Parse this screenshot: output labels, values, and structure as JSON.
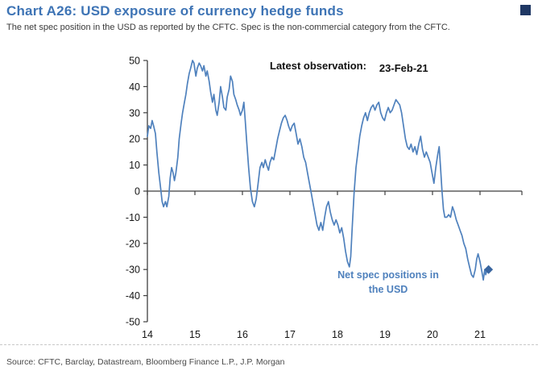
{
  "header": {
    "title": "Chart A26: USD exposure of currency hedge funds",
    "subtitle": "The net spec position in the USD as reported by the CFTC. Spec is the non-commercial category from the CFTC."
  },
  "annotations": {
    "latest_observation_label": "Latest observation:",
    "latest_observation_date": "23-Feb-21",
    "series_label_line1": "Net spec positions in",
    "series_label_line2": "the USD"
  },
  "footer": {
    "source": "Source: CFTC, Barclay, Datastream, Bloomberg Finance L.P., J.P. Morgan"
  },
  "colors": {
    "title_blue": "#3E74B5",
    "line_blue": "#4F81BD",
    "marker_blue": "#3A66A0",
    "corner_square_navy": "#1F3864",
    "axis_dark": "#3f3f3f"
  },
  "chart_data": {
    "type": "line",
    "title": "USD exposure of currency hedge funds",
    "xlabel": "",
    "ylabel": "",
    "x_ticks": [
      "14",
      "15",
      "16",
      "17",
      "18",
      "19",
      "20",
      "21"
    ],
    "y_ticks": [
      50,
      40,
      30,
      20,
      10,
      0,
      -10,
      -20,
      -30,
      -40,
      -50
    ],
    "ylim": [
      -50,
      50
    ],
    "xlim": [
      2014,
      2021.9
    ],
    "grid": false,
    "legend": "none",
    "latest_observation": {
      "date": "23-Feb-21",
      "x": 2021.18,
      "value": -30,
      "marker": "diamond"
    },
    "series": [
      {
        "name": "Net spec positions in the USD",
        "points": [
          [
            2014.0,
            21
          ],
          [
            2014.03,
            25
          ],
          [
            2014.07,
            24
          ],
          [
            2014.1,
            27
          ],
          [
            2014.13,
            25
          ],
          [
            2014.17,
            22
          ],
          [
            2014.2,
            15
          ],
          [
            2014.24,
            7
          ],
          [
            2014.28,
            1
          ],
          [
            2014.31,
            -4
          ],
          [
            2014.34,
            -6
          ],
          [
            2014.38,
            -4
          ],
          [
            2014.41,
            -6
          ],
          [
            2014.45,
            -2
          ],
          [
            2014.48,
            5
          ],
          [
            2014.51,
            9
          ],
          [
            2014.54,
            7
          ],
          [
            2014.57,
            4
          ],
          [
            2014.6,
            7
          ],
          [
            2014.64,
            13
          ],
          [
            2014.67,
            20
          ],
          [
            2014.71,
            26
          ],
          [
            2014.74,
            30
          ],
          [
            2014.78,
            34
          ],
          [
            2014.81,
            37
          ],
          [
            2014.84,
            41
          ],
          [
            2014.88,
            45
          ],
          [
            2014.91,
            47
          ],
          [
            2014.95,
            50
          ],
          [
            2014.98,
            49
          ],
          [
            2015.02,
            44
          ],
          [
            2015.05,
            47
          ],
          [
            2015.09,
            49
          ],
          [
            2015.12,
            48
          ],
          [
            2015.16,
            46
          ],
          [
            2015.19,
            48
          ],
          [
            2015.23,
            44
          ],
          [
            2015.26,
            46
          ],
          [
            2015.3,
            42
          ],
          [
            2015.33,
            38
          ],
          [
            2015.37,
            34
          ],
          [
            2015.4,
            37
          ],
          [
            2015.44,
            31
          ],
          [
            2015.47,
            29
          ],
          [
            2015.51,
            34
          ],
          [
            2015.54,
            40
          ],
          [
            2015.58,
            36
          ],
          [
            2015.61,
            32
          ],
          [
            2015.65,
            31
          ],
          [
            2015.68,
            36
          ],
          [
            2015.72,
            39
          ],
          [
            2015.75,
            44
          ],
          [
            2015.79,
            42
          ],
          [
            2015.82,
            37
          ],
          [
            2015.86,
            35
          ],
          [
            2015.89,
            33
          ],
          [
            2015.93,
            31
          ],
          [
            2015.96,
            29
          ],
          [
            2016.0,
            31
          ],
          [
            2016.03,
            34
          ],
          [
            2016.06,
            27
          ],
          [
            2016.09,
            19
          ],
          [
            2016.13,
            9
          ],
          [
            2016.17,
            1
          ],
          [
            2016.21,
            -4
          ],
          [
            2016.25,
            -6
          ],
          [
            2016.29,
            -3
          ],
          [
            2016.33,
            3
          ],
          [
            2016.37,
            9
          ],
          [
            2016.41,
            11
          ],
          [
            2016.44,
            9
          ],
          [
            2016.48,
            12
          ],
          [
            2016.51,
            10
          ],
          [
            2016.55,
            8
          ],
          [
            2016.58,
            11
          ],
          [
            2016.62,
            13
          ],
          [
            2016.66,
            12
          ],
          [
            2016.7,
            16
          ],
          [
            2016.74,
            20
          ],
          [
            2016.78,
            23
          ],
          [
            2016.82,
            26
          ],
          [
            2016.86,
            28
          ],
          [
            2016.9,
            29
          ],
          [
            2016.94,
            27
          ],
          [
            2016.97,
            25
          ],
          [
            2017.01,
            23
          ],
          [
            2017.05,
            25
          ],
          [
            2017.09,
            26
          ],
          [
            2017.13,
            22
          ],
          [
            2017.17,
            18
          ],
          [
            2017.21,
            20
          ],
          [
            2017.25,
            17
          ],
          [
            2017.29,
            13
          ],
          [
            2017.33,
            11
          ],
          [
            2017.37,
            7
          ],
          [
            2017.41,
            3
          ],
          [
            2017.45,
            -1
          ],
          [
            2017.49,
            -5
          ],
          [
            2017.53,
            -9
          ],
          [
            2017.57,
            -13
          ],
          [
            2017.61,
            -15
          ],
          [
            2017.65,
            -12
          ],
          [
            2017.69,
            -15
          ],
          [
            2017.73,
            -10
          ],
          [
            2017.77,
            -6
          ],
          [
            2017.81,
            -4
          ],
          [
            2017.85,
            -8
          ],
          [
            2017.89,
            -11
          ],
          [
            2017.93,
            -13
          ],
          [
            2017.97,
            -11
          ],
          [
            2018.01,
            -13
          ],
          [
            2018.05,
            -16
          ],
          [
            2018.09,
            -14
          ],
          [
            2018.13,
            -18
          ],
          [
            2018.17,
            -23
          ],
          [
            2018.21,
            -27
          ],
          [
            2018.25,
            -29
          ],
          [
            2018.28,
            -25
          ],
          [
            2018.31,
            -14
          ],
          [
            2018.35,
            -1
          ],
          [
            2018.39,
            9
          ],
          [
            2018.43,
            15
          ],
          [
            2018.47,
            21
          ],
          [
            2018.51,
            25
          ],
          [
            2018.55,
            28
          ],
          [
            2018.59,
            30
          ],
          [
            2018.63,
            27
          ],
          [
            2018.67,
            30
          ],
          [
            2018.71,
            32
          ],
          [
            2018.75,
            33
          ],
          [
            2018.79,
            31
          ],
          [
            2018.83,
            33
          ],
          [
            2018.87,
            34
          ],
          [
            2018.91,
            30
          ],
          [
            2018.95,
            28
          ],
          [
            2018.99,
            27
          ],
          [
            2019.03,
            30
          ],
          [
            2019.07,
            32
          ],
          [
            2019.11,
            30
          ],
          [
            2019.15,
            31
          ],
          [
            2019.19,
            33
          ],
          [
            2019.23,
            35
          ],
          [
            2019.27,
            34
          ],
          [
            2019.31,
            33
          ],
          [
            2019.35,
            30
          ],
          [
            2019.39,
            25
          ],
          [
            2019.43,
            20
          ],
          [
            2019.47,
            17
          ],
          [
            2019.51,
            16
          ],
          [
            2019.55,
            18
          ],
          [
            2019.59,
            15
          ],
          [
            2019.63,
            17
          ],
          [
            2019.67,
            14
          ],
          [
            2019.71,
            18
          ],
          [
            2019.75,
            21
          ],
          [
            2019.79,
            16
          ],
          [
            2019.83,
            13
          ],
          [
            2019.87,
            15
          ],
          [
            2019.91,
            13
          ],
          [
            2019.95,
            11
          ],
          [
            2019.99,
            7
          ],
          [
            2020.03,
            3
          ],
          [
            2020.07,
            9
          ],
          [
            2020.11,
            14
          ],
          [
            2020.14,
            17
          ],
          [
            2020.17,
            9
          ],
          [
            2020.2,
            0
          ],
          [
            2020.23,
            -7
          ],
          [
            2020.26,
            -10
          ],
          [
            2020.3,
            -10
          ],
          [
            2020.34,
            -9
          ],
          [
            2020.38,
            -10
          ],
          [
            2020.42,
            -6
          ],
          [
            2020.46,
            -8
          ],
          [
            2020.5,
            -11
          ],
          [
            2020.54,
            -13
          ],
          [
            2020.58,
            -15
          ],
          [
            2020.62,
            -17
          ],
          [
            2020.66,
            -20
          ],
          [
            2020.7,
            -22
          ],
          [
            2020.74,
            -26
          ],
          [
            2020.78,
            -29
          ],
          [
            2020.82,
            -32
          ],
          [
            2020.86,
            -33
          ],
          [
            2020.9,
            -30
          ],
          [
            2020.93,
            -26
          ],
          [
            2020.96,
            -24
          ],
          [
            2021.0,
            -27
          ],
          [
            2021.04,
            -31
          ],
          [
            2021.07,
            -34
          ],
          [
            2021.1,
            -30
          ],
          [
            2021.12,
            -32
          ],
          [
            2021.15,
            -30
          ]
        ]
      }
    ]
  }
}
